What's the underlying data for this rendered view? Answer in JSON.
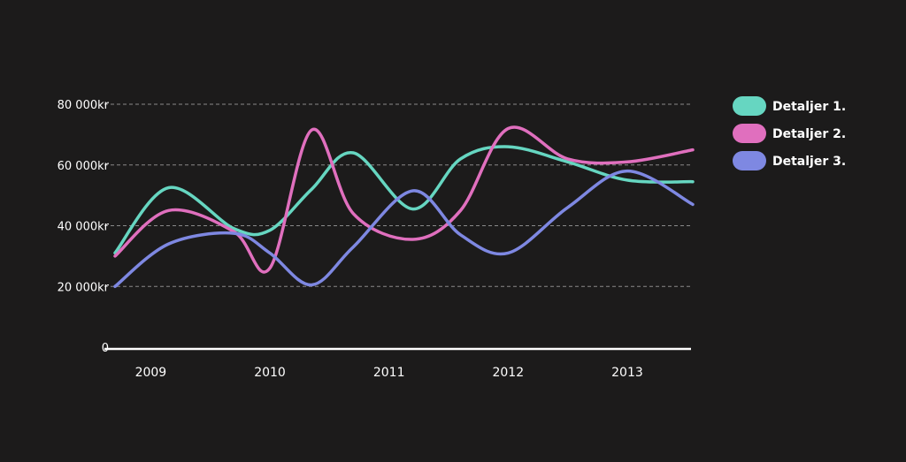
{
  "chart_data": {
    "type": "line",
    "title": "",
    "xlabel": "",
    "ylabel": "",
    "x": [
      2008.7,
      2009.15,
      2009.7,
      2010.0,
      2010.35,
      2010.7,
      2011.2,
      2011.6,
      2012.0,
      2012.5,
      2013.0,
      2013.55
    ],
    "x_ticks": [
      "2009",
      "2010",
      "2011",
      "2012",
      "2013"
    ],
    "x_tick_values": [
      2009,
      2010,
      2011,
      2012,
      2013
    ],
    "y_ticks": [
      "0",
      "20 000kr",
      "40 000kr",
      "60 000kr",
      "80 000kr"
    ],
    "y_tick_values": [
      0,
      20000,
      40000,
      60000,
      80000
    ],
    "ylim": [
      0,
      80000
    ],
    "xlim": [
      2008.7,
      2013.55
    ],
    "grid": true,
    "legend_position": "right",
    "series": [
      {
        "name": "Detaljer 1.",
        "color": "#66d6c1",
        "values": [
          31000,
          52500,
          39000,
          38500,
          52000,
          64000,
          45500,
          62000,
          66000,
          61000,
          55000,
          54500
        ]
      },
      {
        "name": "Detaljer 2.",
        "color": "#e06fbe",
        "values": [
          30000,
          45000,
          38000,
          26000,
          71500,
          44000,
          35500,
          45000,
          72000,
          62000,
          61000,
          65000
        ]
      },
      {
        "name": "Detaljer 3.",
        "color": "#7e88e2",
        "values": [
          20000,
          34000,
          37500,
          31000,
          20500,
          33000,
          51500,
          37000,
          31000,
          46000,
          58000,
          47000
        ]
      }
    ]
  }
}
